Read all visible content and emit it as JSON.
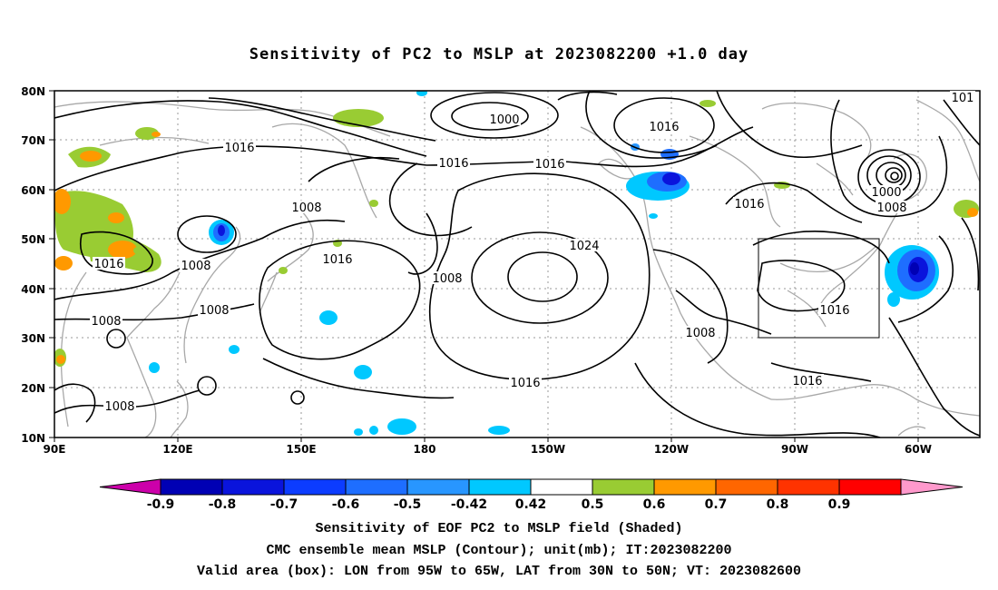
{
  "title": "Sensitivity of PC2 to MSLP at 2023082200 +1.0 day",
  "captions": {
    "line1": "Sensitivity of EOF PC2 to MSLP field (Shaded)",
    "line2": "CMC ensemble mean MSLP (Contour); unit(mb); IT:2023082200",
    "line3": "Valid area (box): LON from 95W to 65W, LAT from 30N to 50N; VT: 2023082600"
  },
  "axes": {
    "lat_labels": [
      "80N",
      "70N",
      "60N",
      "50N",
      "40N",
      "30N",
      "20N",
      "10N"
    ],
    "lon_labels": [
      "90E",
      "120E",
      "150E",
      "180",
      "150W",
      "120W",
      "90W",
      "60W"
    ]
  },
  "contour_labels": [
    "1000",
    "1016",
    "1016",
    "1016",
    "1016",
    "1008",
    "1008",
    "1016",
    "1016",
    "1024",
    "1008",
    "1008",
    "1008",
    "1016",
    "1016",
    "1000",
    "1008",
    "1016",
    "1008",
    "1008",
    "1016",
    "101"
  ],
  "colorbar": {
    "tick_labels": [
      "-0.9",
      "-0.8",
      "-0.7",
      "-0.6",
      "-0.5",
      "-0.42",
      "0.42",
      "0.5",
      "0.6",
      "0.7",
      "0.8",
      "0.9"
    ],
    "colors": [
      "#cc00aa",
      "#0000b4",
      "#0a14dc",
      "#0c3cff",
      "#1e6eff",
      "#2896ff",
      "#00c8ff",
      "#ffffff",
      "#99cc33",
      "#ff9900",
      "#ff6600",
      "#ff3300",
      "#ff0000",
      "#ff99cc"
    ]
  }
}
